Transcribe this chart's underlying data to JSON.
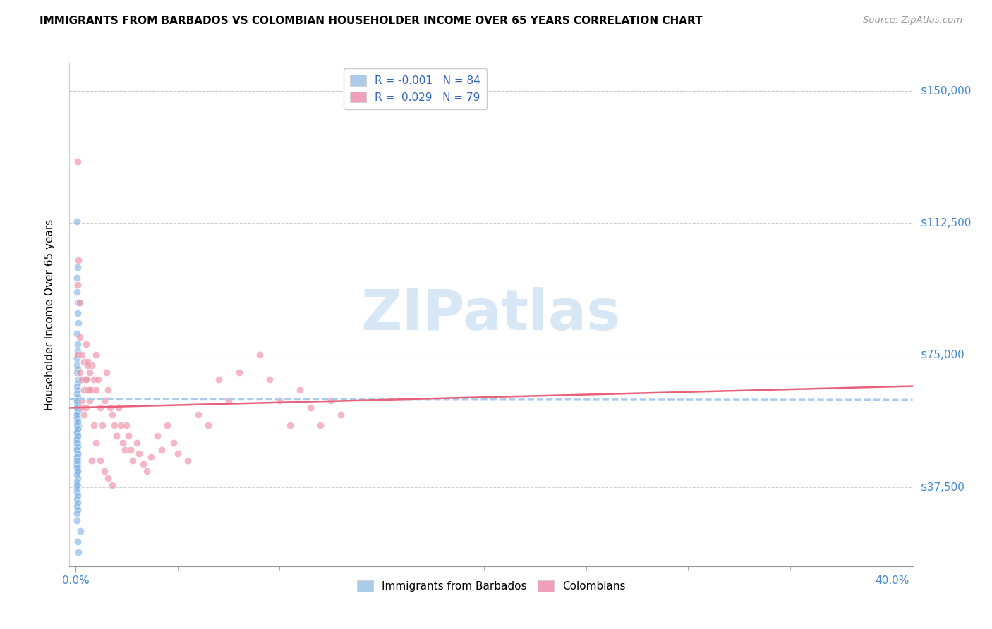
{
  "title": "IMMIGRANTS FROM BARBADOS VS COLOMBIAN HOUSEHOLDER INCOME OVER 65 YEARS CORRELATION CHART",
  "source": "Source: ZipAtlas.com",
  "ylabel": "Householder Income Over 65 years",
  "ylabel_ticks": [
    "$37,500",
    "$75,000",
    "$112,500",
    "$150,000"
  ],
  "ylabel_tick_vals": [
    37500,
    75000,
    112500,
    150000
  ],
  "xlim": [
    -0.003,
    0.41
  ],
  "ylim": [
    15000,
    158000
  ],
  "watermark_text": "ZIPatlas",
  "barbados_color": "#85b8e8",
  "colombian_color": "#f090a8",
  "barbados_trend_color": "#aaccee",
  "colombian_trend_color": "#e8607a",
  "legend_label_1": "R = -0.001   N = 84",
  "legend_label_2": "R =  0.029   N = 79",
  "legend_patch_1": "#aaccea",
  "legend_patch_2": "#f0a0b8",
  "bottom_legend_1": "Immigrants from Barbados",
  "bottom_legend_2": "Colombians",
  "axis_label_color": "#4488cc",
  "grid_color": "#cccccc",
  "barbados_x": [
    0.0005,
    0.001,
    0.0008,
    0.0006,
    0.0012,
    0.001,
    0.0015,
    0.0007,
    0.0009,
    0.001,
    0.0005,
    0.0008,
    0.001,
    0.0006,
    0.0012,
    0.001,
    0.0007,
    0.0009,
    0.0005,
    0.001,
    0.0006,
    0.0008,
    0.001,
    0.0007,
    0.0009,
    0.0005,
    0.001,
    0.0006,
    0.0012,
    0.001,
    0.0007,
    0.0009,
    0.0005,
    0.001,
    0.0006,
    0.0008,
    0.001,
    0.0007,
    0.0009,
    0.0005,
    0.001,
    0.0006,
    0.0008,
    0.001,
    0.0007,
    0.0009,
    0.0005,
    0.001,
    0.0006,
    0.0008,
    0.001,
    0.0007,
    0.0009,
    0.0005,
    0.001,
    0.0006,
    0.0008,
    0.001,
    0.0007,
    0.0009,
    0.0005,
    0.001,
    0.0006,
    0.0008,
    0.001,
    0.0007,
    0.0009,
    0.0005,
    0.001,
    0.0006,
    0.0008,
    0.001,
    0.0007,
    0.0009,
    0.0005,
    0.001,
    0.0006,
    0.0008,
    0.0025,
    0.001,
    0.0015,
    0.0007,
    0.0009,
    0.0005
  ],
  "barbados_y": [
    113000,
    100000,
    97000,
    93000,
    90000,
    87000,
    84000,
    81000,
    78000,
    76000,
    74000,
    72000,
    71000,
    70000,
    68000,
    67000,
    66000,
    65000,
    64000,
    63000,
    62000,
    61000,
    60000,
    60000,
    59000,
    58000,
    57000,
    56000,
    55000,
    54000,
    53000,
    52000,
    51000,
    50000,
    49000,
    48000,
    47000,
    46000,
    46000,
    45000,
    44000,
    44000,
    43000,
    43000,
    62000,
    61000,
    60000,
    59000,
    58000,
    57000,
    56000,
    55000,
    54000,
    53000,
    52000,
    51000,
    50000,
    49000,
    48000,
    47000,
    46000,
    45000,
    44000,
    43000,
    42000,
    41000,
    40000,
    39000,
    38000,
    37000,
    36000,
    35000,
    34000,
    33000,
    32000,
    31000,
    30000,
    28000,
    25000,
    22000,
    19000,
    45000,
    42000,
    38000
  ],
  "colombian_x": [
    0.001,
    0.001,
    0.001,
    0.0015,
    0.002,
    0.002,
    0.002,
    0.003,
    0.003,
    0.003,
    0.004,
    0.004,
    0.005,
    0.005,
    0.005,
    0.006,
    0.006,
    0.007,
    0.007,
    0.008,
    0.008,
    0.009,
    0.01,
    0.01,
    0.011,
    0.012,
    0.013,
    0.014,
    0.015,
    0.016,
    0.017,
    0.018,
    0.019,
    0.02,
    0.021,
    0.022,
    0.023,
    0.024,
    0.025,
    0.026,
    0.027,
    0.028,
    0.03,
    0.031,
    0.033,
    0.035,
    0.037,
    0.04,
    0.042,
    0.045,
    0.048,
    0.05,
    0.055,
    0.06,
    0.065,
    0.07,
    0.075,
    0.08,
    0.09,
    0.095,
    0.1,
    0.105,
    0.11,
    0.115,
    0.12,
    0.125,
    0.13,
    0.003,
    0.004,
    0.005,
    0.006,
    0.007,
    0.008,
    0.009,
    0.01,
    0.012,
    0.014,
    0.016,
    0.018
  ],
  "colombian_y": [
    130000,
    95000,
    75000,
    102000,
    90000,
    80000,
    70000,
    75000,
    68000,
    60000,
    73000,
    65000,
    78000,
    68000,
    60000,
    73000,
    65000,
    70000,
    62000,
    65000,
    72000,
    68000,
    75000,
    65000,
    68000,
    60000,
    55000,
    62000,
    70000,
    65000,
    60000,
    58000,
    55000,
    52000,
    60000,
    55000,
    50000,
    48000,
    55000,
    52000,
    48000,
    45000,
    50000,
    47000,
    44000,
    42000,
    46000,
    52000,
    48000,
    55000,
    50000,
    47000,
    45000,
    58000,
    55000,
    68000,
    62000,
    70000,
    75000,
    68000,
    62000,
    55000,
    65000,
    60000,
    55000,
    62000,
    58000,
    62000,
    58000,
    68000,
    72000,
    65000,
    45000,
    55000,
    50000,
    45000,
    42000,
    40000,
    38000
  ]
}
